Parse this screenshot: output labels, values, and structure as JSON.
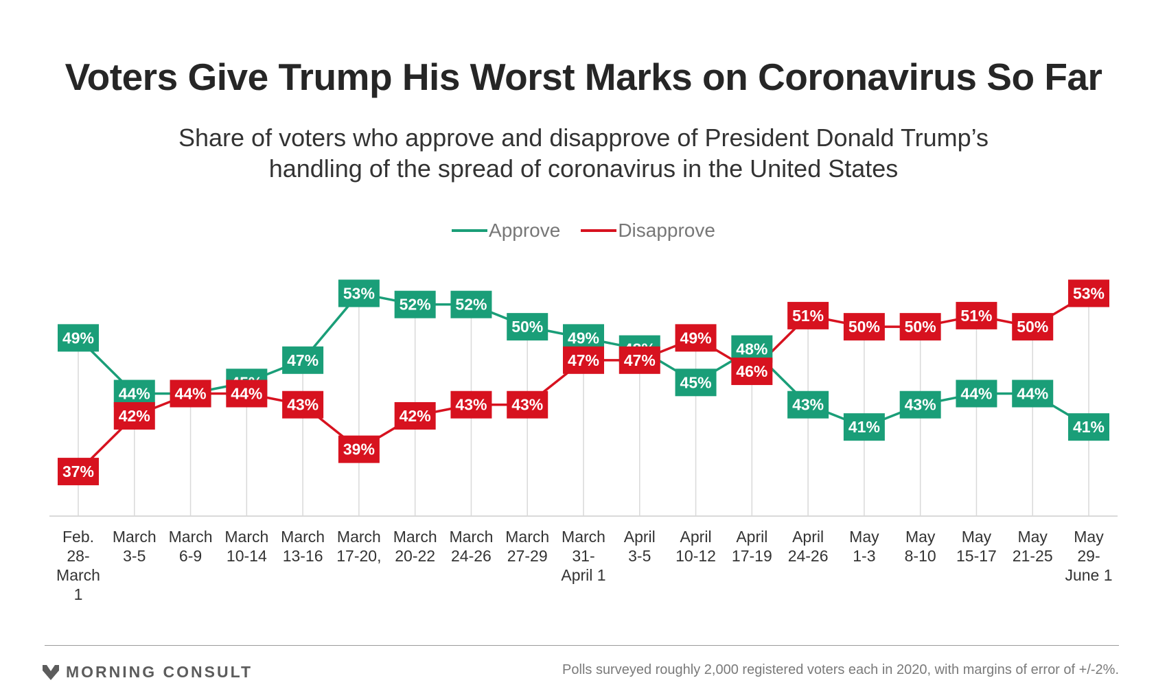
{
  "title": "Voters Give Trump His Worst Marks on Coronavirus So Far",
  "subtitle": "Share of voters who approve and disapprove of President Donald Trump’s handling of the spread of coronavirus in the United States",
  "colors": {
    "approve": "#1a9e78",
    "disapprove": "#d7121f",
    "grid": "#d9d9d9",
    "text": "#262626"
  },
  "chart_data": {
    "type": "line",
    "categories": [
      "Feb. 28- March 1",
      "March 3-5",
      "March 6-9",
      "March 10-14",
      "March 13-16",
      "March 17-20,",
      "March 20-22",
      "March 24-26",
      "March 27-29",
      "March 31- April 1",
      "April 3-5",
      "April 10-12",
      "April 17-19",
      "April 24-26",
      "May 1-3",
      "May 8-10",
      "May 15-17",
      "May 21-25",
      "May 29- June 1"
    ],
    "series": [
      {
        "name": "Approve",
        "color": "#1a9e78",
        "values": [
          49,
          44,
          44,
          45,
          47,
          53,
          52,
          52,
          50,
          49,
          48,
          45,
          48,
          43,
          41,
          43,
          44,
          44,
          41
        ]
      },
      {
        "name": "Disapprove",
        "color": "#d7121f",
        "values": [
          37,
          42,
          44,
          44,
          43,
          39,
          42,
          43,
          43,
          47,
          47,
          49,
          46,
          51,
          50,
          50,
          51,
          50,
          53
        ]
      }
    ],
    "value_suffix": "%",
    "ylim": [
      33,
      55
    ],
    "legend_position": "top-center",
    "grid": "vertical"
  },
  "footer": {
    "brand": "MORNING CONSULT",
    "note": "Polls surveyed roughly 2,000 registered voters each in 2020, with margins of error of +/-2%."
  }
}
